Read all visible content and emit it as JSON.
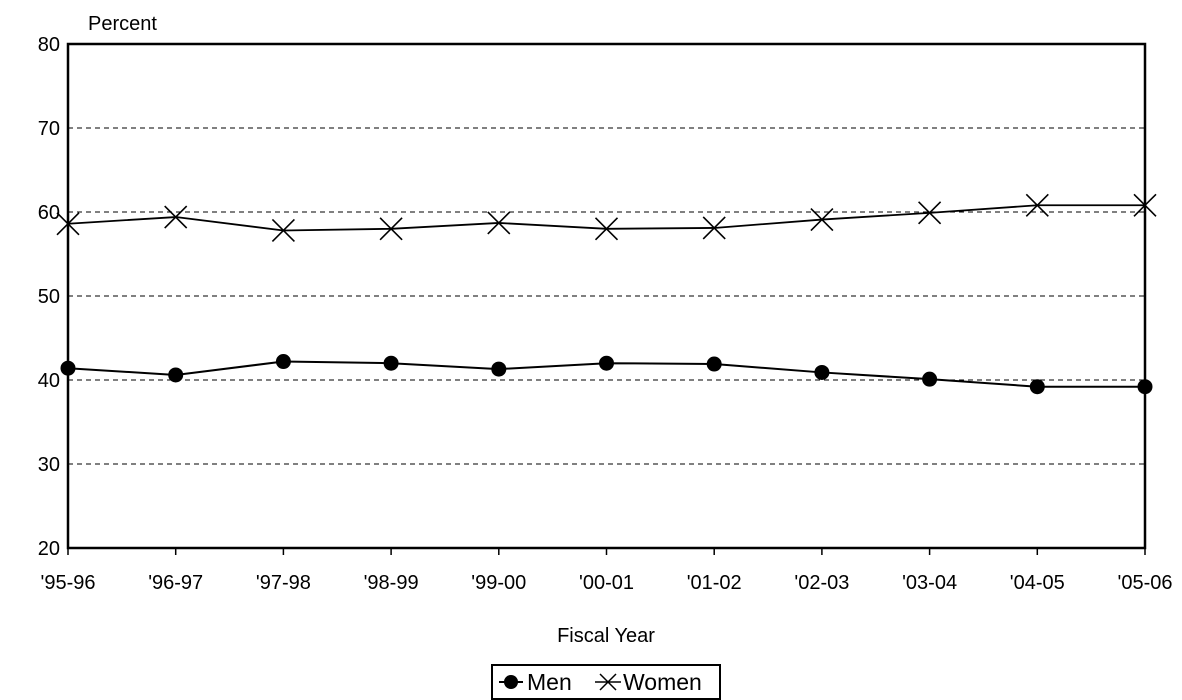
{
  "chart_data": {
    "type": "line",
    "title": "",
    "ylabel": "Percent",
    "xlabel": "Fiscal Year",
    "ylim": [
      20,
      80
    ],
    "yticks": [
      20,
      30,
      40,
      50,
      60,
      70,
      80
    ],
    "grid": true,
    "legend_position": "bottom-center",
    "categories": [
      "'95-96",
      "'96-97",
      "'97-98",
      "'98-99",
      "'99-00",
      "'00-01",
      "'01-02",
      "'02-03",
      "'03-04",
      "'04-05",
      "'05-06"
    ],
    "series": [
      {
        "name": "Men",
        "marker": "filled-circle",
        "color": "#000000",
        "values": [
          41.4,
          40.6,
          42.2,
          42.0,
          41.3,
          42.0,
          41.9,
          40.9,
          40.1,
          39.2,
          39.2
        ]
      },
      {
        "name": "Women",
        "marker": "x-cross",
        "color": "#000000",
        "values": [
          58.6,
          59.4,
          57.8,
          58.0,
          58.7,
          58.0,
          58.1,
          59.1,
          59.9,
          60.8,
          60.8
        ]
      }
    ]
  }
}
